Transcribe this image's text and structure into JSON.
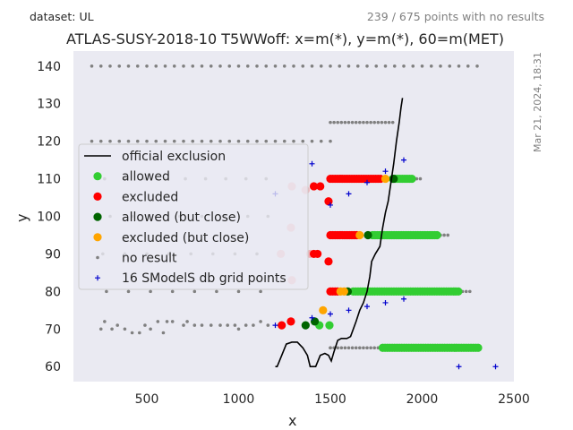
{
  "header": {
    "dataset": "dataset: UL",
    "summary": "239 / 675 points with no results",
    "timestamp": "Mar 21, 2024, 18:31"
  },
  "chart_data": {
    "type": "scatter",
    "title": "ATLAS-SUSY-2018-10 T5WWoff: x=m(*), y=m(*), 60=m(MET)",
    "xlabel": "x",
    "ylabel": "y",
    "xlim": [
      100,
      2500
    ],
    "ylim": [
      56,
      144
    ],
    "xticks": [
      500,
      1000,
      1500,
      2000,
      2500
    ],
    "yticks": [
      60,
      70,
      80,
      90,
      100,
      110,
      120,
      130,
      140
    ],
    "grid": false,
    "legend_position": "center-left",
    "colors": {
      "background": "#eaeaf2",
      "allowed": "#32cd32",
      "excluded": "#ff0000",
      "allowed_close": "#006400",
      "excluded_close": "#ffa500",
      "no_result": "#808080",
      "grid_points": "#0000cd",
      "exclusion_line": "#000000"
    },
    "legend": [
      {
        "key": "exclusion",
        "label": "official exclusion"
      },
      {
        "key": "allowed",
        "label": "allowed"
      },
      {
        "key": "excluded",
        "label": "excluded"
      },
      {
        "key": "allowed_close",
        "label": "allowed (but close)"
      },
      {
        "key": "excluded_close",
        "label": "excluded (but close)"
      },
      {
        "key": "no_result",
        "label": "no result"
      },
      {
        "key": "grid_points",
        "label": "16 SModelS db grid points"
      }
    ],
    "official_exclusion": [
      [
        1200,
        60
      ],
      [
        1210,
        60
      ],
      [
        1235,
        63
      ],
      [
        1260,
        66
      ],
      [
        1290,
        66.5
      ],
      [
        1320,
        66.5
      ],
      [
        1350,
        65
      ],
      [
        1375,
        63
      ],
      [
        1390,
        60
      ],
      [
        1420,
        60
      ],
      [
        1445,
        63
      ],
      [
        1470,
        63.5
      ],
      [
        1490,
        63
      ],
      [
        1505,
        61.5
      ],
      [
        1520,
        64
      ],
      [
        1540,
        67
      ],
      [
        1560,
        67.5
      ],
      [
        1590,
        67.5
      ],
      [
        1610,
        68
      ],
      [
        1625,
        70
      ],
      [
        1640,
        72
      ],
      [
        1660,
        75
      ],
      [
        1680,
        77
      ],
      [
        1700,
        80
      ],
      [
        1715,
        84
      ],
      [
        1725,
        88
      ],
      [
        1745,
        90
      ],
      [
        1770,
        92
      ],
      [
        1785,
        97
      ],
      [
        1800,
        101
      ],
      [
        1815,
        104
      ],
      [
        1830,
        109
      ],
      [
        1845,
        114
      ],
      [
        1860,
        120
      ],
      [
        1875,
        125
      ],
      [
        1885,
        129
      ],
      [
        1893,
        131.5
      ]
    ],
    "no_result_rows": [
      {
        "y": 140,
        "from": 200,
        "to": 2300,
        "step": 50
      },
      {
        "y": 120,
        "from": 200,
        "to": 1500,
        "step": 50
      },
      {
        "y": 125,
        "from": 1500,
        "to": 1850,
        "step": 20
      },
      {
        "y": 110,
        "from": 1950,
        "to": 2000,
        "step": 20
      },
      {
        "y": 95,
        "from": 2100,
        "to": 2150,
        "step": 20
      },
      {
        "y": 80,
        "from": 2220,
        "to": 2260,
        "step": 20
      },
      {
        "y": 65,
        "from": 1500,
        "to": 1760,
        "step": 20
      }
    ],
    "no_result_points": [
      [
        270,
        110
      ],
      [
        380,
        110
      ],
      [
        490,
        110
      ],
      [
        600,
        110
      ],
      [
        710,
        110
      ],
      [
        820,
        110
      ],
      [
        930,
        110
      ],
      [
        1040,
        110
      ],
      [
        1150,
        110
      ],
      [
        300,
        100
      ],
      [
        420,
        100
      ],
      [
        550,
        100
      ],
      [
        680,
        100
      ],
      [
        800,
        100
      ],
      [
        920,
        100
      ],
      [
        1050,
        100
      ],
      [
        1160,
        100
      ],
      [
        260,
        90
      ],
      [
        380,
        90
      ],
      [
        500,
        90
      ],
      [
        620,
        90
      ],
      [
        740,
        90
      ],
      [
        860,
        90
      ],
      [
        980,
        90
      ],
      [
        1100,
        90
      ],
      [
        280,
        80
      ],
      [
        400,
        80
      ],
      [
        520,
        80
      ],
      [
        640,
        80
      ],
      [
        760,
        80
      ],
      [
        880,
        80
      ],
      [
        1000,
        80
      ],
      [
        1120,
        80
      ],
      [
        250,
        70
      ],
      [
        270,
        72
      ],
      [
        310,
        70
      ],
      [
        340,
        71
      ],
      [
        380,
        70
      ],
      [
        420,
        69
      ],
      [
        460,
        69
      ],
      [
        490,
        71
      ],
      [
        520,
        70
      ],
      [
        560,
        72
      ],
      [
        590,
        69
      ],
      [
        610,
        72
      ],
      [
        640,
        72
      ],
      [
        700,
        71
      ],
      [
        720,
        72
      ],
      [
        760,
        71
      ],
      [
        800,
        71
      ],
      [
        850,
        71
      ],
      [
        900,
        71
      ],
      [
        940,
        71
      ],
      [
        980,
        71
      ],
      [
        1000,
        70
      ],
      [
        1040,
        71
      ],
      [
        1080,
        71
      ],
      [
        1120,
        72
      ],
      [
        1160,
        71
      ],
      [
        1500,
        65
      ]
    ],
    "allowed_rows": [
      {
        "y": 110,
        "from": 1840,
        "to": 1945,
        "step": 13
      },
      {
        "y": 95,
        "from": 1730,
        "to": 2085,
        "step": 13
      },
      {
        "y": 80,
        "from": 1625,
        "to": 2205,
        "step": 13
      },
      {
        "y": 65,
        "from": 1785,
        "to": 2310,
        "step": 13
      }
    ],
    "allowed_points": [
      [
        1440,
        71
      ],
      [
        1495,
        71
      ]
    ],
    "excluded_rows": [
      {
        "y": 110,
        "from": 1500,
        "to": 1775,
        "step": 13
      },
      {
        "y": 95,
        "from": 1500,
        "to": 1650,
        "step": 13
      },
      {
        "y": 80,
        "from": 1500,
        "to": 1545,
        "step": 13
      }
    ],
    "excluded_points": [
      [
        1235,
        71
      ],
      [
        1285,
        72
      ],
      [
        1410,
        108
      ],
      [
        1445,
        108
      ],
      [
        1490,
        104
      ],
      [
        1410,
        90
      ],
      [
        1430,
        90
      ],
      [
        1490,
        88
      ],
      [
        1290,
        108
      ],
      [
        1365,
        107
      ],
      [
        1285,
        97
      ],
      [
        1290,
        83
      ],
      [
        1230,
        90
      ],
      [
        1390,
        90
      ]
    ],
    "excluded_faded": [
      [
        1290,
        108
      ],
      [
        1365,
        107
      ],
      [
        1285,
        97
      ],
      [
        1290,
        83
      ],
      [
        1230,
        90
      ],
      [
        1390,
        90
      ]
    ],
    "allowed_close_points": [
      [
        1845,
        110
      ],
      [
        1705,
        95
      ],
      [
        1595,
        80
      ],
      [
        1365,
        71
      ],
      [
        1415,
        72
      ]
    ],
    "excluded_close_points": [
      [
        1800,
        110
      ],
      [
        1660,
        95
      ],
      [
        1555,
        80
      ],
      [
        1575,
        80
      ],
      [
        1460,
        75
      ]
    ],
    "grid_points": [
      [
        1200,
        106
      ],
      [
        1400,
        114
      ],
      [
        1500,
        103
      ],
      [
        1600,
        106
      ],
      [
        1700,
        109
      ],
      [
        1800,
        112
      ],
      [
        1900,
        115
      ],
      [
        1200,
        71
      ],
      [
        1400,
        73
      ],
      [
        1500,
        74
      ],
      [
        1600,
        75
      ],
      [
        1700,
        76
      ],
      [
        1800,
        77
      ],
      [
        1900,
        78
      ],
      [
        2200,
        60
      ],
      [
        2400,
        60
      ]
    ]
  }
}
